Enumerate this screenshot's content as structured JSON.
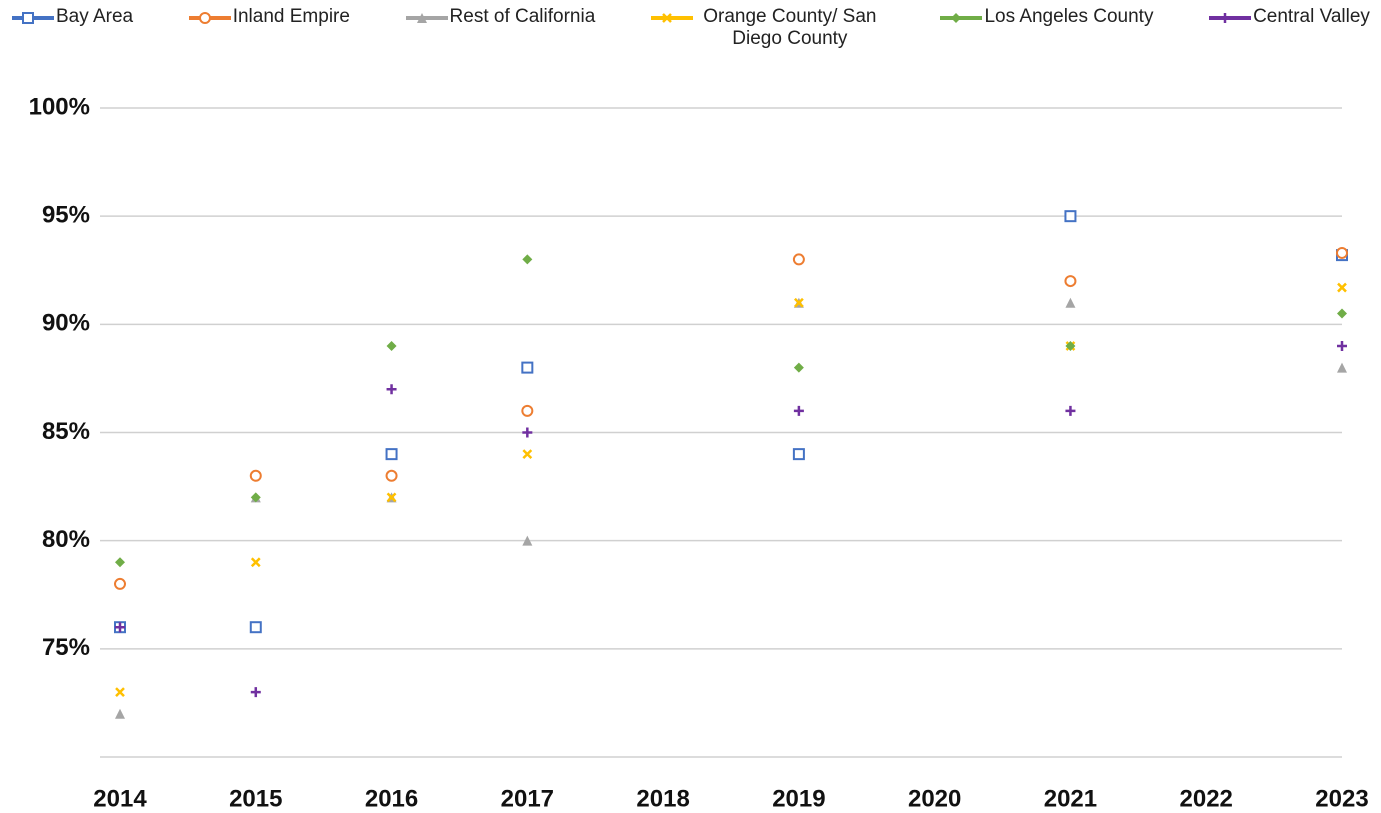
{
  "chart_data": {
    "type": "line",
    "xlim": [
      2014,
      2023
    ],
    "xticks": [
      2014,
      2015,
      2016,
      2017,
      2018,
      2019,
      2020,
      2021,
      2022,
      2023
    ],
    "ylim": [
      70,
      100
    ],
    "yticks": [
      {
        "value": 75,
        "label": "75%"
      },
      {
        "value": 80,
        "label": "80%"
      },
      {
        "value": 85,
        "label": "85%"
      },
      {
        "value": 90,
        "label": "90%"
      },
      {
        "value": 95,
        "label": "95%"
      },
      {
        "value": 100,
        "label": "100%"
      }
    ],
    "grid": true,
    "legend": "top",
    "series": [
      {
        "name": "Bay Area",
        "color": "#4472c4",
        "marker": "square",
        "x": [
          2014,
          2015,
          2016,
          2017,
          2019,
          2021,
          2023
        ],
        "values": [
          76,
          76,
          84,
          88,
          84,
          95,
          93.2
        ]
      },
      {
        "name": "Inland Empire",
        "color": "#ed7d31",
        "marker": "circle",
        "x": [
          2014,
          2015,
          2016,
          2017,
          2019,
          2021,
          2023
        ],
        "values": [
          78,
          83,
          83,
          86,
          93,
          92,
          93.3
        ]
      },
      {
        "name": "Rest of California",
        "color": "#a5a5a5",
        "marker": "triangle",
        "x": [
          2014,
          2015,
          2016,
          2017,
          2019,
          2021,
          2023
        ],
        "values": [
          72,
          82,
          82,
          80,
          91,
          91,
          88
        ]
      },
      {
        "name": "Orange County/ San Diego County",
        "color": "#ffc000",
        "marker": "x",
        "x": [
          2014,
          2015,
          2016,
          2017,
          2019,
          2021,
          2023
        ],
        "values": [
          73,
          79,
          82,
          84,
          91,
          89,
          91.7
        ]
      },
      {
        "name": "Los Angeles County",
        "color": "#70ad47",
        "marker": "diamond",
        "x": [
          2014,
          2015,
          2016,
          2017,
          2019,
          2021,
          2023
        ],
        "values": [
          79,
          82,
          89,
          93,
          88,
          89,
          90.5
        ]
      },
      {
        "name": "Central Valley",
        "color": "#7030a0",
        "marker": "plus",
        "x": [
          2014,
          2015,
          2016,
          2017,
          2019,
          2021,
          2023
        ],
        "values": [
          76,
          73,
          87,
          85,
          86,
          86,
          89
        ]
      }
    ]
  }
}
